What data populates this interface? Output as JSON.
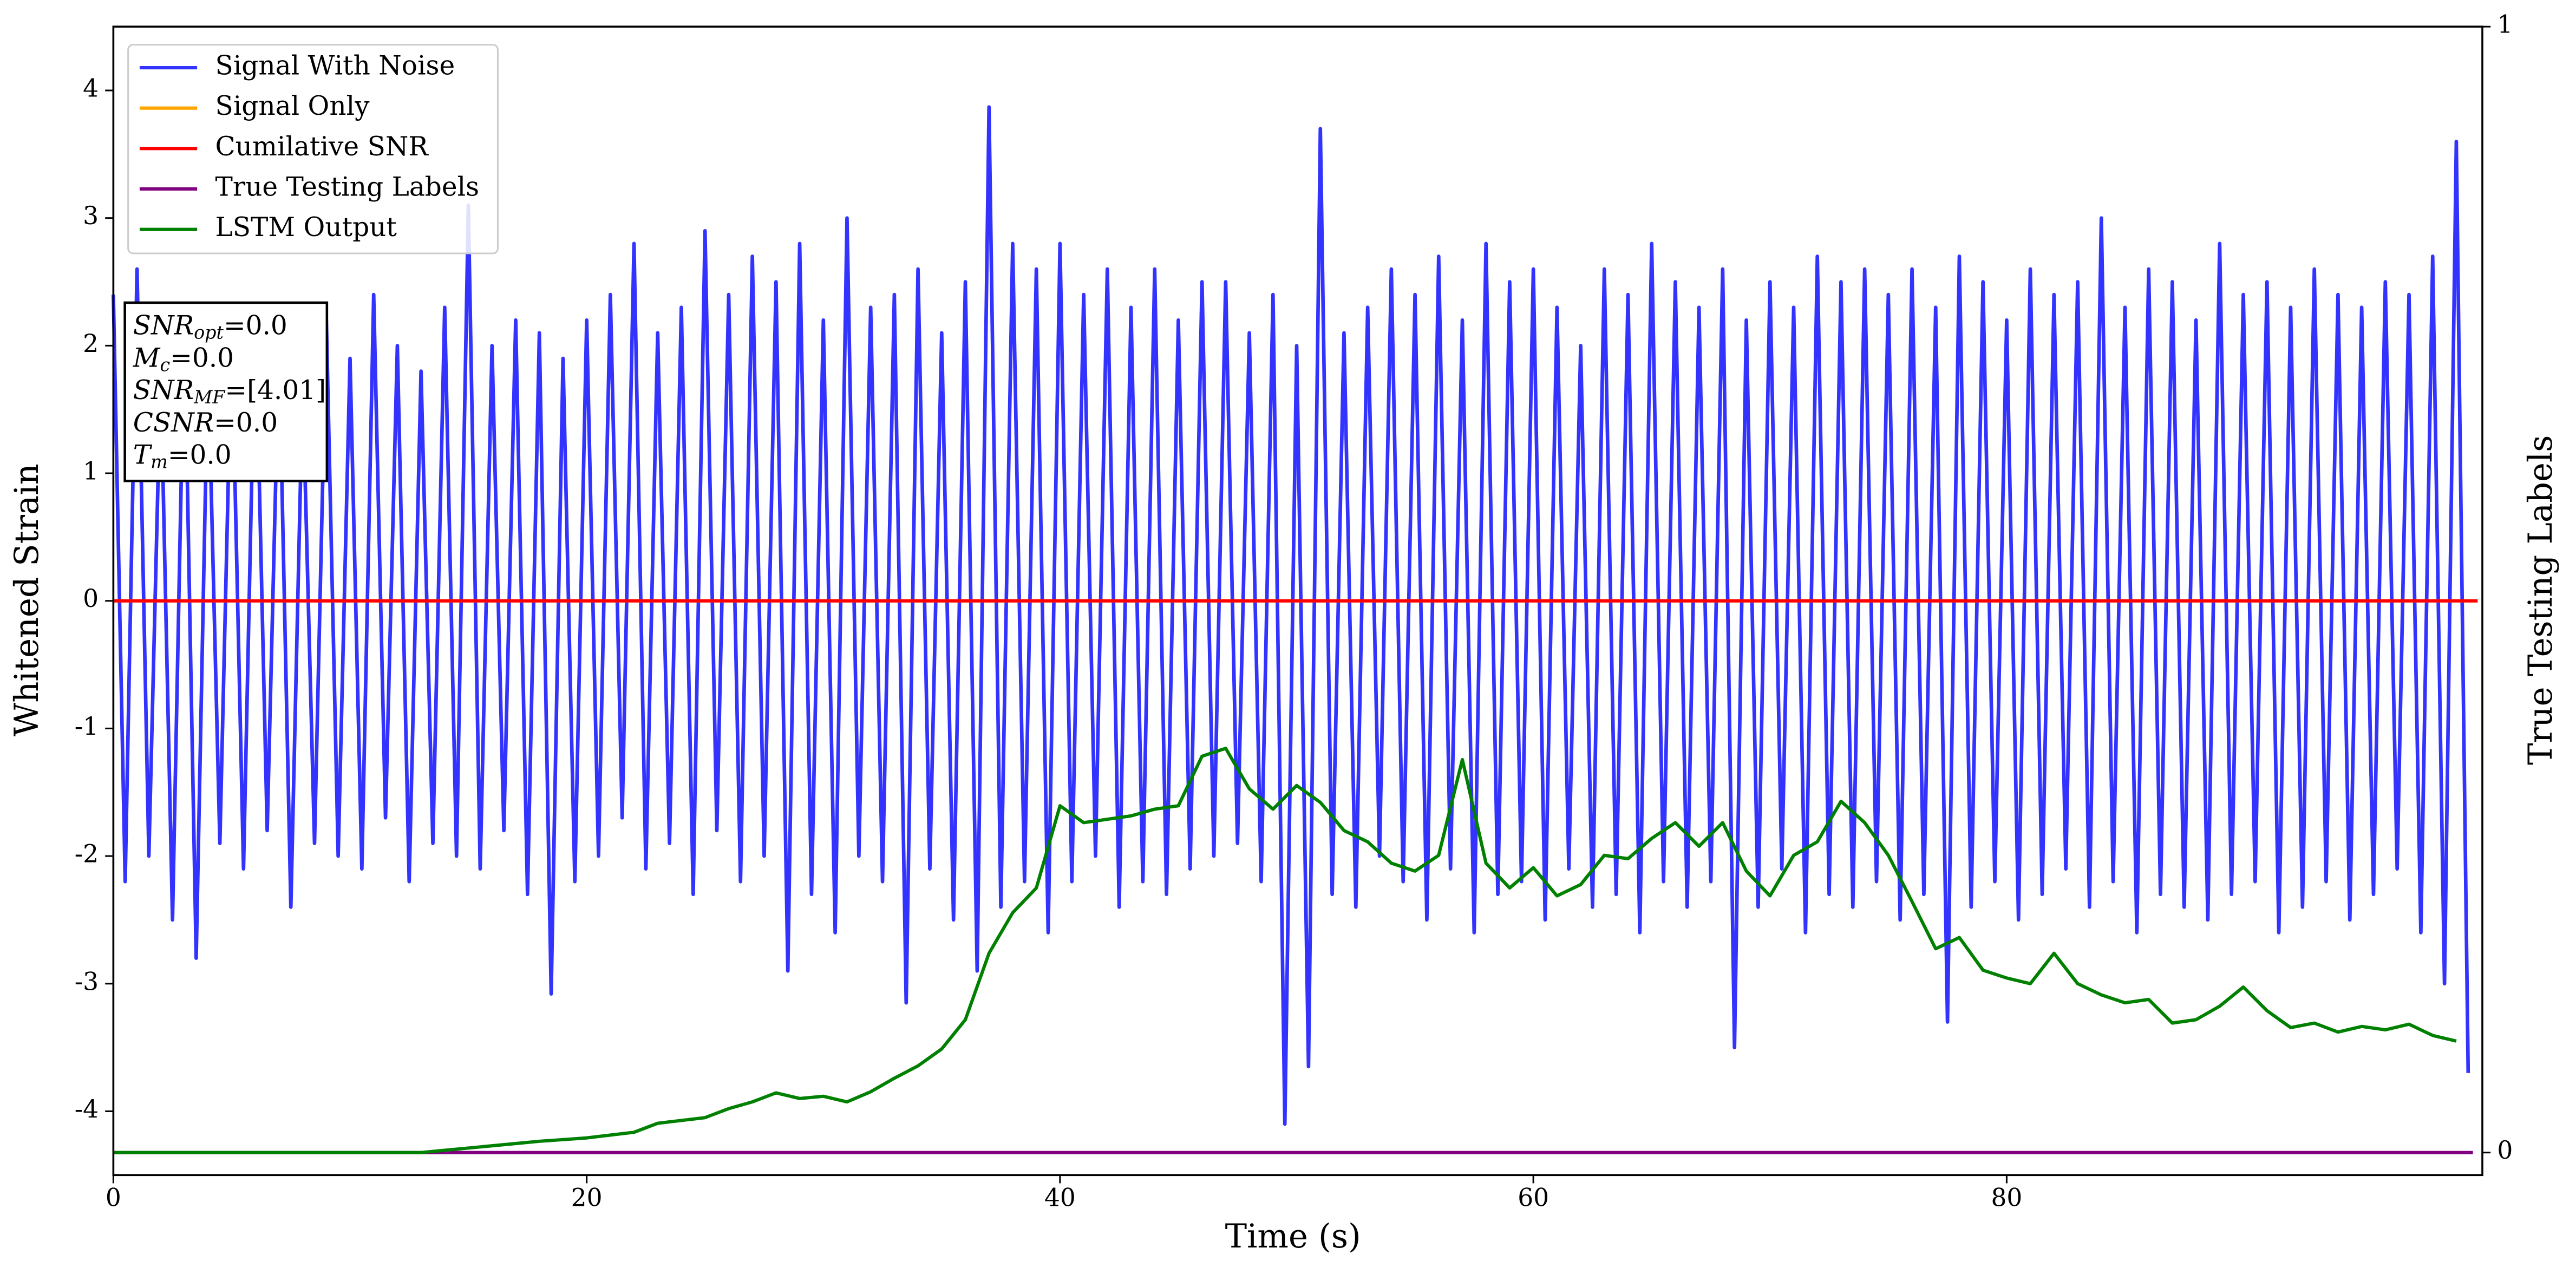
{
  "chart_data": {
    "type": "line",
    "xlabel": "Time (s)",
    "ylabel": "Whitened Strain",
    "y2label": "True Testing Labels",
    "xlim": [
      0,
      100.1
    ],
    "xticks": [
      0,
      20,
      40,
      60,
      80
    ],
    "ylim": [
      -4.5,
      4.5
    ],
    "yticks": [
      -4,
      -3,
      -2,
      -1,
      0,
      1,
      2,
      3,
      4
    ],
    "y2lim": [
      -0.02,
      1
    ],
    "y2ticks": [
      0,
      1
    ],
    "legend": "upper left",
    "annotation": [
      {
        "symbol": "SNR",
        "sub": "opt",
        "text": "=0.0"
      },
      {
        "symbol": "M",
        "sub": "c",
        "text": "=0.0"
      },
      {
        "symbol": "SNR",
        "sub": "MF",
        "text": "=[4.01]"
      },
      {
        "symbol": "CSNR",
        "text": "=0.0"
      },
      {
        "symbol": "T",
        "sub": "m",
        "text": "=0.0"
      }
    ],
    "series": [
      {
        "name": "Signal With Noise",
        "color": "#3333ff",
        "x": [
          0,
          0.5,
          1,
          1.5,
          2,
          2.5,
          3,
          3.5,
          4,
          4.5,
          5,
          5.5,
          6,
          6.5,
          7,
          7.5,
          8,
          8.5,
          9,
          9.5,
          10,
          10.5,
          11,
          11.5,
          12,
          12.5,
          13,
          13.5,
          14,
          14.5,
          15,
          15.5,
          16,
          16.5,
          17,
          17.5,
          18,
          18.5,
          19,
          19.5,
          20,
          20.5,
          21,
          21.5,
          22,
          22.5,
          23,
          23.5,
          24,
          24.5,
          25,
          25.5,
          26,
          26.5,
          27,
          27.5,
          28,
          28.5,
          29,
          29.5,
          30,
          30.5,
          31,
          31.5,
          32,
          32.5,
          33,
          33.5,
          34,
          34.5,
          35,
          35.5,
          36,
          36.5,
          37,
          37.5,
          38,
          38.5,
          39,
          39.5,
          40,
          40.5,
          41,
          41.5,
          42,
          42.5,
          43,
          43.5,
          44,
          44.5,
          45,
          45.5,
          46,
          46.5,
          47,
          47.5,
          48,
          48.5,
          49,
          49.5,
          50,
          50.5,
          51,
          51.5,
          52,
          52.5,
          53,
          53.5,
          54,
          54.5,
          55,
          55.5,
          56,
          56.5,
          57,
          57.5,
          58,
          58.5,
          59,
          59.5,
          60,
          60.5,
          61,
          61.5,
          62,
          62.5,
          63,
          63.5,
          64,
          64.5,
          65,
          65.5,
          66,
          66.5,
          67,
          67.5,
          68,
          68.5,
          69,
          69.5,
          70,
          70.5,
          71,
          71.5,
          72,
          72.5,
          73,
          73.5,
          74,
          74.5,
          75,
          75.5,
          76,
          76.5,
          77,
          77.5,
          78,
          78.5,
          79,
          79.5,
          80,
          80.5,
          81,
          81.5,
          82,
          82.5,
          83,
          83.5,
          84,
          84.5,
          85,
          85.5,
          86,
          86.5,
          87,
          87.5,
          88,
          88.5,
          89,
          89.5,
          90,
          90.5,
          91,
          91.5,
          92,
          92.5,
          93,
          93.5,
          94,
          94.5,
          95,
          95.5,
          96,
          96.5,
          97,
          97.5,
          98,
          98.5,
          99,
          99.5
        ],
        "values": [
          2.4,
          -2.2,
          2.6,
          -2.0,
          1.8,
          -2.5,
          2.2,
          -2.8,
          1.9,
          -1.9,
          2.1,
          -2.1,
          2.3,
          -1.8,
          2.0,
          -2.4,
          1.7,
          -1.9,
          2.2,
          -2.0,
          1.9,
          -2.1,
          2.4,
          -1.7,
          2.0,
          -2.2,
          1.8,
          -1.9,
          2.3,
          -2.0,
          3.1,
          -2.1,
          2.0,
          -1.8,
          2.2,
          -2.3,
          2.1,
          -3.08,
          1.9,
          -2.2,
          2.2,
          -2.0,
          2.4,
          -1.7,
          2.8,
          -2.1,
          2.1,
          -1.9,
          2.3,
          -2.3,
          2.9,
          -1.8,
          2.4,
          -2.2,
          2.7,
          -2.0,
          2.5,
          -2.9,
          2.8,
          -2.3,
          2.2,
          -2.6,
          3.0,
          -2.0,
          2.3,
          -2.2,
          2.4,
          -3.15,
          2.6,
          -2.1,
          2.1,
          -2.5,
          2.5,
          -2.9,
          3.87,
          -2.4,
          2.8,
          -2.2,
          2.6,
          -2.6,
          2.8,
          -2.2,
          2.4,
          -2.0,
          2.6,
          -2.4,
          2.3,
          -2.2,
          2.6,
          -2.3,
          2.2,
          -2.1,
          2.5,
          -2.0,
          2.5,
          -1.9,
          2.1,
          -2.2,
          2.4,
          -4.1,
          2.0,
          -3.65,
          3.7,
          -2.3,
          2.1,
          -2.4,
          2.3,
          -2.0,
          2.6,
          -2.2,
          2.4,
          -2.5,
          2.7,
          -2.1,
          2.2,
          -2.6,
          2.8,
          -2.3,
          2.5,
          -2.2,
          2.6,
          -2.5,
          2.3,
          -2.1,
          2.0,
          -2.4,
          2.6,
          -2.3,
          2.4,
          -2.6,
          2.8,
          -2.2,
          2.5,
          -2.4,
          2.3,
          -2.2,
          2.6,
          -3.5,
          2.2,
          -2.4,
          2.5,
          -2.1,
          2.3,
          -2.6,
          2.7,
          -2.3,
          2.5,
          -2.4,
          2.6,
          -2.2,
          2.4,
          -2.5,
          2.6,
          -2.3,
          2.3,
          -3.3,
          2.7,
          -2.4,
          2.5,
          -2.2,
          2.2,
          -2.5,
          2.6,
          -2.3,
          2.4,
          -2.1,
          2.5,
          -2.4,
          3.0,
          -2.2,
          2.3,
          -2.6,
          2.6,
          -2.3,
          2.5,
          -2.4,
          2.2,
          -2.5,
          2.8,
          -2.3,
          2.4,
          -2.2,
          2.5,
          -2.6,
          2.3,
          -2.4,
          2.6,
          -2.2,
          2.4,
          -2.5,
          2.3,
          -2.3,
          2.5,
          -2.1,
          2.4,
          -2.6,
          2.7,
          -3.0,
          3.6,
          -3.7
        ]
      },
      {
        "name": "Signal Only",
        "color": "orange",
        "x": [
          0,
          99.9
        ],
        "values": [
          0,
          0
        ]
      },
      {
        "name": "Cumilative SNR",
        "color": "red",
        "x": [
          0,
          99.9
        ],
        "values": [
          0,
          0
        ]
      },
      {
        "name": "True Testing Labels",
        "color": "purple",
        "axis": "y2",
        "x": [
          0,
          99.7
        ],
        "values": [
          0,
          0
        ]
      },
      {
        "name": "LSTM Output",
        "color": "green",
        "axis": "y2",
        "x": [
          0,
          5,
          10,
          13,
          14,
          16,
          18,
          20,
          22,
          23,
          25,
          26,
          27,
          28,
          29,
          30,
          31,
          32,
          33,
          34,
          35,
          36,
          37,
          38,
          39,
          40,
          41,
          42,
          43,
          44,
          45,
          46,
          47,
          48,
          49,
          50,
          51,
          52,
          53,
          54,
          55,
          56,
          57,
          58,
          59,
          60,
          61,
          62,
          63,
          64,
          65,
          66,
          67,
          68,
          69,
          70,
          71,
          72,
          73,
          74,
          75,
          76,
          77,
          78,
          79,
          80,
          81,
          82,
          83,
          84,
          85,
          86,
          87,
          88,
          89,
          90,
          91,
          92,
          93,
          94,
          95,
          96,
          97,
          98,
          99
        ],
        "values": [
          0,
          0,
          0,
          0,
          0.002,
          0.006,
          0.01,
          0.013,
          0.018,
          0.026,
          0.031,
          0.039,
          0.045,
          0.053,
          0.048,
          0.05,
          0.045,
          0.054,
          0.066,
          0.077,
          0.092,
          0.118,
          0.177,
          0.213,
          0.235,
          0.308,
          0.293,
          0.296,
          0.299,
          0.305,
          0.308,
          0.352,
          0.359,
          0.323,
          0.305,
          0.326,
          0.311,
          0.286,
          0.276,
          0.257,
          0.25,
          0.264,
          0.349,
          0.257,
          0.235,
          0.253,
          0.228,
          0.238,
          0.264,
          0.261,
          0.279,
          0.293,
          0.272,
          0.293,
          0.25,
          0.228,
          0.264,
          0.276,
          0.312,
          0.293,
          0.264,
          0.223,
          0.181,
          0.191,
          0.162,
          0.155,
          0.15,
          0.177,
          0.15,
          0.14,
          0.133,
          0.136,
          0.115,
          0.118,
          0.13,
          0.147,
          0.126,
          0.111,
          0.115,
          0.107,
          0.112,
          0.109,
          0.114,
          0.104,
          0.099
        ]
      }
    ]
  }
}
